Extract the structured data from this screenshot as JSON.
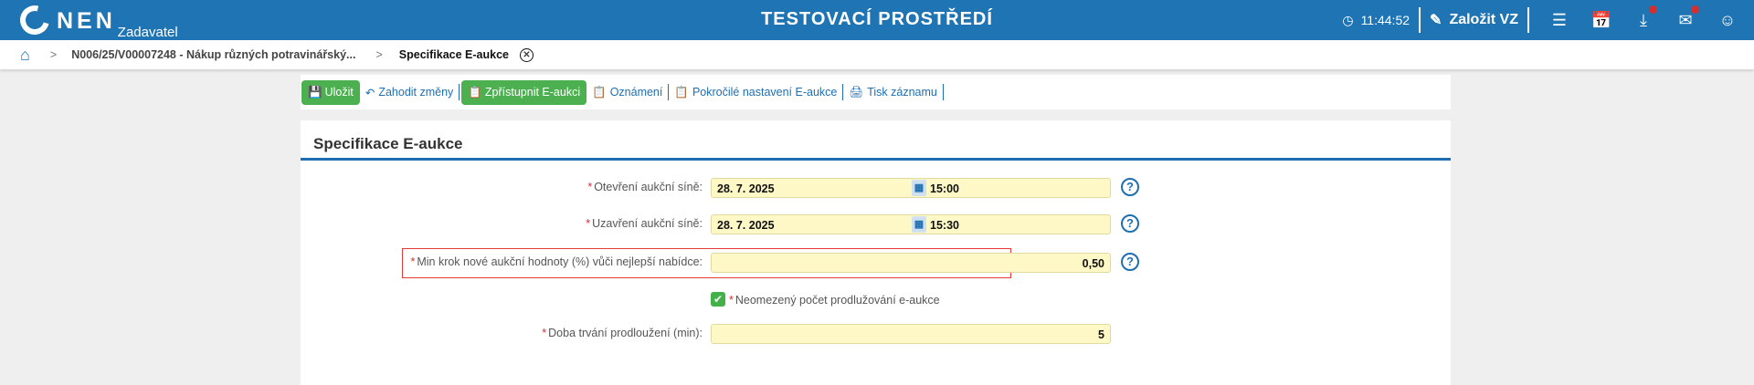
{
  "header": {
    "logo": "NEN",
    "logo_sub": "Zadavatel",
    "title": "TESTOVACÍ PROSTŘEDÍ",
    "time": "11:44:52",
    "create_label": "Založit VZ",
    "icons": [
      "clock-icon",
      "edit-icon",
      "menu-icon",
      "calendar-icon",
      "download-icon",
      "mail-icon",
      "user-icon"
    ],
    "accent": "#1f74b3"
  },
  "breadcrumb": {
    "items": [
      "N006/25/V00007248 - Nákup různých potravinářský...",
      "Specifikace E-aukce"
    ]
  },
  "toolbar": {
    "save": "Uložit",
    "discard": "Zahodit změny",
    "publish": "Zpřístupnit E-aukci",
    "notice": "Oznámení",
    "advanced": "Pokročilé nastavení E-aukce",
    "print": "Tisk záznamu"
  },
  "form": {
    "title": "Specifikace E-aukce",
    "open_label": "Otevření aukční síně:",
    "open_date": "28. 7. 2025",
    "open_time": "15:00",
    "close_label": "Uzavření aukční síně:",
    "close_date": "28. 7. 2025",
    "close_time": "15:30",
    "step_label": "Min krok nové aukční hodnoty (%) vůči nejlepší nabídce:",
    "step_value": "0,50",
    "unlimited_label": "Neomezený počet prodlužování e-aukce",
    "unlimited_checked": true,
    "ext_label": "Doba trvání prodloužení (min):",
    "ext_value": "5",
    "required_mark": "*",
    "help": "?"
  }
}
